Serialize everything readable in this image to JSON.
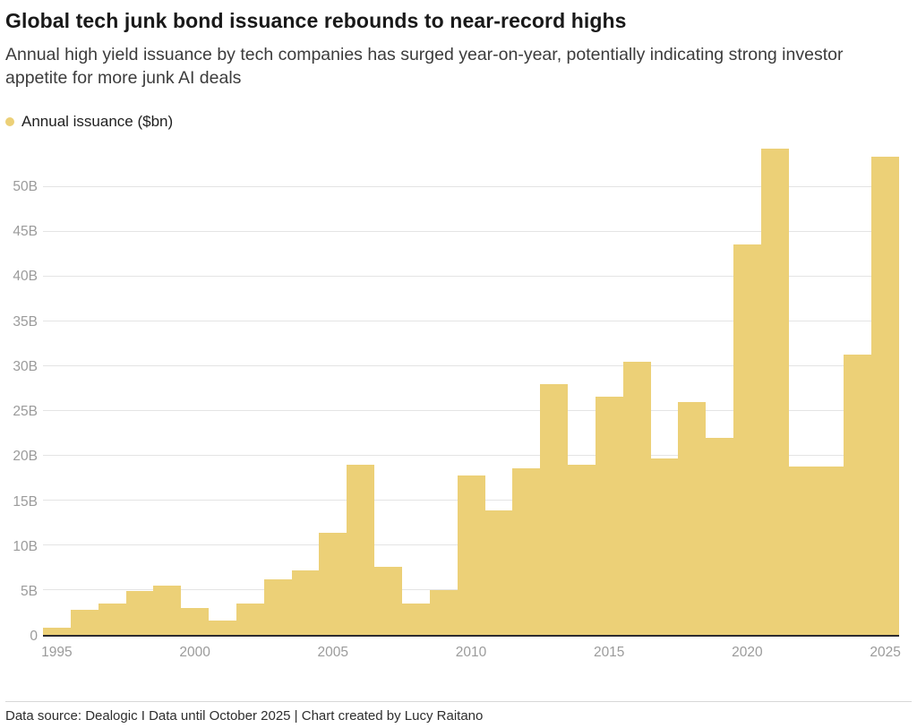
{
  "header": {
    "title": "Global tech junk bond issuance rebounds to near-record highs",
    "subtitle": "Annual high yield issuance by tech companies has surged year-on-year, potentially indicating strong investor appetite for more junk AI deals"
  },
  "legend": {
    "label": "Annual issuance ($bn)"
  },
  "footer": {
    "text": "Data source: Dealogic I Data until October 2025 | Chart created by Lucy Raitano"
  },
  "colors": {
    "bar": "#ecd077",
    "grid": "#e4e4e4",
    "axis": "#2c2b30",
    "tick_label": "#9b9b9b"
  },
  "chart_data": {
    "type": "bar",
    "title": "Global tech junk bond issuance rebounds to near-record highs",
    "legend_entries": [
      "Annual issuance ($bn)"
    ],
    "legend_position": "top-left",
    "grid": "horizontal",
    "xlabel": "",
    "ylabel": "Annual issuance ($bn)",
    "ylim": [
      0,
      55
    ],
    "x": [
      1995,
      1996,
      1997,
      1998,
      1999,
      2000,
      2001,
      2002,
      2003,
      2004,
      2005,
      2006,
      2007,
      2008,
      2009,
      2010,
      2011,
      2012,
      2013,
      2014,
      2015,
      2016,
      2017,
      2018,
      2019,
      2020,
      2021,
      2022,
      2023,
      2024,
      2025
    ],
    "values": [
      0.8,
      2.8,
      3.5,
      4.9,
      5.5,
      3.0,
      1.6,
      3.5,
      6.2,
      7.2,
      11.4,
      19.0,
      7.6,
      3.5,
      5.0,
      17.8,
      13.9,
      18.6,
      28.0,
      19.0,
      26.6,
      30.5,
      19.7,
      26.0,
      22.0,
      43.6,
      54.2,
      18.8,
      18.8,
      31.3,
      53.3
    ],
    "y_tick_values": [
      0,
      5,
      10,
      15,
      20,
      25,
      30,
      35,
      40,
      45,
      50
    ],
    "y_tick_labels": [
      "0",
      "5B",
      "10B",
      "15B",
      "20B",
      "25B",
      "30B",
      "35B",
      "40B",
      "45B",
      "50B"
    ],
    "x_tick_labels": [
      "1995",
      "2000",
      "2005",
      "2010",
      "2015",
      "2020",
      "2025"
    ]
  }
}
